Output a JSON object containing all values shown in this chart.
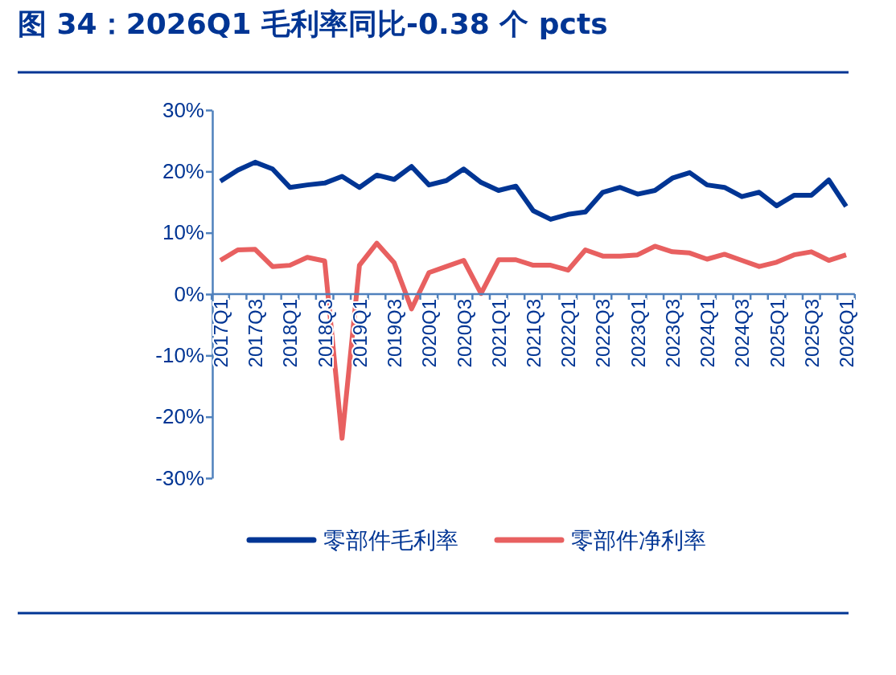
{
  "chart_data": {
    "type": "line",
    "title": "图 34：2026Q1 毛利率同比-0.38 个 pcts",
    "categories": [
      "2017Q1",
      null,
      "2017Q3",
      null,
      "2018Q1",
      null,
      "2018Q3",
      null,
      "2019Q1",
      null,
      "2019Q3",
      null,
      "2020Q1",
      null,
      "2020Q3",
      null,
      "2021Q1",
      null,
      "2021Q3",
      null,
      "2022Q1",
      null,
      "2022Q3",
      null,
      "2023Q1",
      null,
      "2023Q3",
      null,
      "2024Q1",
      null,
      "2024Q3",
      null,
      "2025Q1",
      null,
      "2025Q3",
      null,
      "2026Q1"
    ],
    "series": [
      {
        "name": "零部件毛利率",
        "color": "#003594",
        "values": [
          18.4,
          20.2,
          21.5,
          20.4,
          17.4,
          17.8,
          18.1,
          19.2,
          17.4,
          19.4,
          18.7,
          20.8,
          17.8,
          18.5,
          20.4,
          18.2,
          16.9,
          17.6,
          13.6,
          12.2,
          13.0,
          13.4,
          16.6,
          17.4,
          16.3,
          16.9,
          18.9,
          19.8,
          17.8,
          17.4,
          15.9,
          16.6,
          14.4,
          16.1,
          16.1,
          18.6,
          14.3
        ]
      },
      {
        "name": "零部件净利率",
        "color": "#e86060",
        "values": [
          5.5,
          7.2,
          7.3,
          4.5,
          4.7,
          6.0,
          5.4,
          -23.5,
          4.7,
          8.3,
          5.1,
          -2.4,
          3.5,
          4.5,
          5.5,
          0.1,
          5.6,
          5.6,
          4.7,
          4.7,
          3.9,
          7.2,
          6.2,
          6.2,
          6.4,
          7.8,
          6.9,
          6.7,
          5.7,
          6.5,
          5.5,
          4.5,
          5.2,
          6.4,
          6.9,
          5.5,
          6.4
        ]
      }
    ],
    "ylim": [
      -30,
      30
    ],
    "yticks": [
      {
        "value": -30,
        "label": "-30%"
      },
      {
        "value": -20,
        "label": "-20%"
      },
      {
        "value": -10,
        "label": "-10%"
      },
      {
        "value": 0,
        "label": "0%"
      },
      {
        "value": 10,
        "label": "10%"
      },
      {
        "value": 20,
        "label": "20%"
      },
      {
        "value": 30,
        "label": "30%"
      }
    ],
    "grid": false,
    "legend": "bottom",
    "marker": "none",
    "line_style": "solid"
  }
}
